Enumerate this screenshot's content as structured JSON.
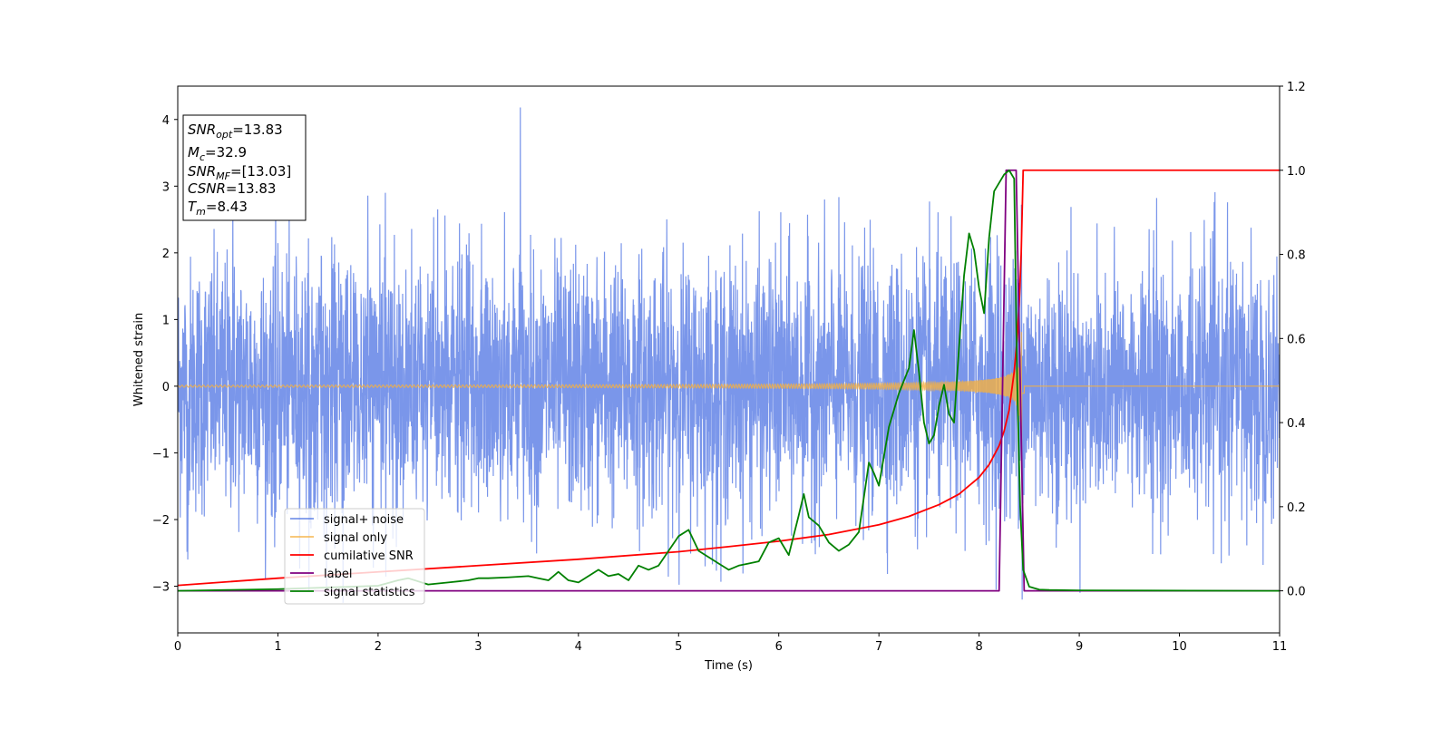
{
  "chart_data": {
    "type": "line",
    "xlabel": "Time (s)",
    "ylabel": "Whitened strain",
    "xlim": [
      0,
      11
    ],
    "ylim": [
      -3.7,
      4.5
    ],
    "y2lim": [
      -0.1,
      1.2
    ],
    "xticks": [
      0,
      1,
      2,
      3,
      4,
      5,
      6,
      7,
      8,
      9,
      10,
      11
    ],
    "yticks": [
      -3,
      -2,
      -1,
      0,
      1,
      2,
      3,
      4
    ],
    "y2ticks": [
      0.0,
      0.2,
      0.4,
      0.6,
      0.8,
      1.0,
      1.2
    ],
    "grid": false,
    "legend_position": "lower-left",
    "info_box": {
      "lines": [
        {
          "main": "SNR",
          "sub": "opt",
          "rest": "=13.83"
        },
        {
          "main": "M",
          "sub": "c",
          "rest": "=32.9"
        },
        {
          "main": "SNR",
          "sub": "MF",
          "rest": "=[13.03]"
        },
        {
          "main": "CSNR",
          "sub": "",
          "rest": "=13.83"
        },
        {
          "main": "T",
          "sub": "m",
          "rest": "=8.43"
        }
      ]
    },
    "series": [
      {
        "name": "signal+ noise",
        "axis": "left",
        "color": "#4169e1",
        "opacity": 0.7,
        "description_kind": "noise",
        "noise_std": 0.95,
        "t_start": 0,
        "t_end": 11,
        "spikes": [
          [
            3.42,
            4.18
          ],
          [
            1.65,
            -3.25
          ],
          [
            0.55,
            2.9
          ],
          [
            8.43,
            -3.2
          ],
          [
            0.1,
            -2.6
          ]
        ]
      },
      {
        "name": "signal only",
        "axis": "left",
        "color": "#f5b041",
        "opacity": 0.8,
        "description_kind": "chirp",
        "merger_time": 8.43,
        "end_time": 8.45,
        "peak_amplitude": 1.6
      },
      {
        "name": "cumilative SNR",
        "axis": "right",
        "color": "#ff0000",
        "x": [
          0,
          1,
          2,
          3,
          4,
          5,
          5.5,
          6,
          6.5,
          7,
          7.3,
          7.6,
          7.8,
          8.0,
          8.1,
          8.2,
          8.25,
          8.3,
          8.35,
          8.38,
          8.4,
          8.42,
          8.43,
          8.44,
          11
        ],
        "values": [
          0.013,
          0.03,
          0.045,
          0.06,
          0.075,
          0.093,
          0.105,
          0.118,
          0.134,
          0.157,
          0.177,
          0.205,
          0.23,
          0.27,
          0.3,
          0.345,
          0.38,
          0.43,
          0.52,
          0.6,
          0.68,
          0.8,
          0.9,
          1.0,
          1.0
        ]
      },
      {
        "name": "label",
        "axis": "right",
        "color": "#800080",
        "x": [
          0,
          8.2,
          8.27,
          8.37,
          8.45,
          11
        ],
        "values": [
          0,
          0,
          1,
          1,
          0,
          0
        ]
      },
      {
        "name": "signal statistics",
        "axis": "right",
        "color": "#008000",
        "x": [
          0,
          0.5,
          1.0,
          1.5,
          2.0,
          2.2,
          2.3,
          2.5,
          2.7,
          2.9,
          3.0,
          3.1,
          3.3,
          3.5,
          3.6,
          3.7,
          3.75,
          3.8,
          3.9,
          4.0,
          4.1,
          4.2,
          4.3,
          4.4,
          4.5,
          4.6,
          4.7,
          4.8,
          4.9,
          5.0,
          5.1,
          5.2,
          5.3,
          5.4,
          5.5,
          5.6,
          5.7,
          5.8,
          5.9,
          6.0,
          6.1,
          6.2,
          6.25,
          6.3,
          6.4,
          6.5,
          6.6,
          6.7,
          6.8,
          6.9,
          6.95,
          7.0,
          7.1,
          7.2,
          7.3,
          7.35,
          7.4,
          7.45,
          7.5,
          7.55,
          7.6,
          7.65,
          7.7,
          7.75,
          7.8,
          7.85,
          7.9,
          7.95,
          8.0,
          8.05,
          8.1,
          8.15,
          8.2,
          8.25,
          8.3,
          8.35,
          8.38,
          8.41,
          8.44,
          8.5,
          8.6,
          8.7,
          9.0,
          11
        ],
        "values": [
          0,
          0.002,
          0.004,
          0.008,
          0.012,
          0.025,
          0.03,
          0.015,
          0.02,
          0.025,
          0.03,
          0.03,
          0.032,
          0.035,
          0.03,
          0.025,
          0.035,
          0.045,
          0.025,
          0.02,
          0.035,
          0.05,
          0.035,
          0.04,
          0.025,
          0.06,
          0.05,
          0.06,
          0.095,
          0.13,
          0.145,
          0.095,
          0.08,
          0.065,
          0.05,
          0.06,
          0.065,
          0.07,
          0.115,
          0.125,
          0.085,
          0.18,
          0.23,
          0.175,
          0.155,
          0.115,
          0.095,
          0.11,
          0.14,
          0.305,
          0.28,
          0.25,
          0.39,
          0.47,
          0.53,
          0.62,
          0.52,
          0.4,
          0.35,
          0.37,
          0.44,
          0.49,
          0.42,
          0.4,
          0.58,
          0.75,
          0.85,
          0.81,
          0.72,
          0.66,
          0.84,
          0.95,
          0.97,
          0.99,
          1.0,
          0.98,
          0.5,
          0.2,
          0.05,
          0.01,
          0.003,
          0.002,
          0.001,
          0
        ]
      }
    ]
  }
}
